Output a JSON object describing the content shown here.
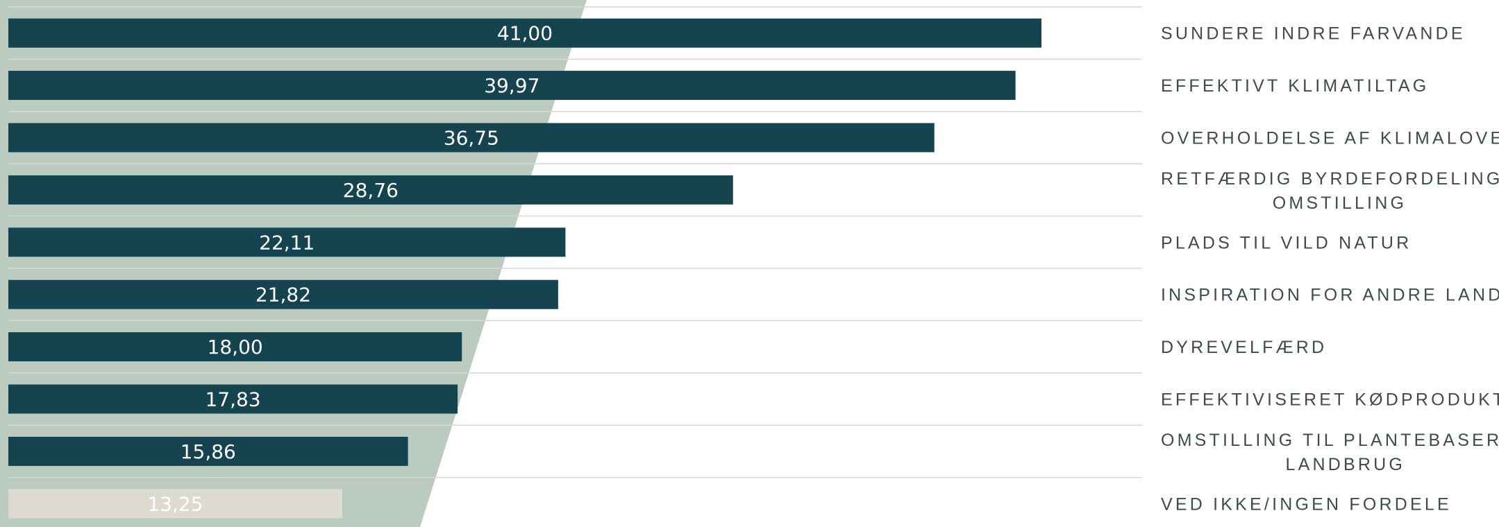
{
  "chart_data": {
    "type": "bar",
    "orientation": "horizontal",
    "categories": [
      "SUNDERE INDRE FARVANDE",
      "EFFEKTIVT KLIMATILTAG",
      "OVERHOLDELSE AF KLIMALOVEN",
      "RETFÆRDIG BYRDEFORDELING I OMSTILLING",
      "PLADS TIL VILD NATUR",
      "INSPIRATION FOR ANDRE LANDE",
      "DYREVELFÆRD",
      "EFFEKTIVISERET KØDPRODUKTION",
      "OMSTILLING TIL PLANTEBASERET LANDBRUG",
      "VED IKKE/INGEN FORDELE"
    ],
    "category_lines": [
      [
        "SUNDERE INDRE FARVANDE"
      ],
      [
        "EFFEKTIVT KLIMATILTAG"
      ],
      [
        "OVERHOLDELSE AF KLIMALOVEN"
      ],
      [
        "RETFÆRDIG BYRDEFORDELING I",
        "OMSTILLING"
      ],
      [
        "PLADS TIL VILD NATUR"
      ],
      [
        "INSPIRATION FOR ANDRE LANDE"
      ],
      [
        "DYREVELFÆRD"
      ],
      [
        "EFFEKTIVISERET KØDPRODUKTION"
      ],
      [
        "OMSTILLING TIL PLANTEBASERET",
        "LANDBRUG"
      ],
      [
        "VED IKKE/INGEN FORDELE"
      ]
    ],
    "values": [
      41.0,
      39.97,
      36.75,
      28.76,
      22.11,
      21.82,
      18.0,
      17.83,
      15.86,
      13.25
    ],
    "value_labels": [
      "41,00",
      "39,97",
      "36,75",
      "28,76",
      "22,11",
      "21,82",
      "18,00",
      "17,83",
      "15,86",
      "13,25"
    ],
    "xlim": [
      0,
      45
    ],
    "grid": true,
    "legend": "none",
    "colors": {
      "bar": "#154450",
      "bar_muted": "#dddbd0",
      "bar_muted_label": "#f2f1ec",
      "background_shape": "#bccbbf",
      "grid": "#d6d8d5",
      "label_text": "#3f4a4c"
    }
  }
}
